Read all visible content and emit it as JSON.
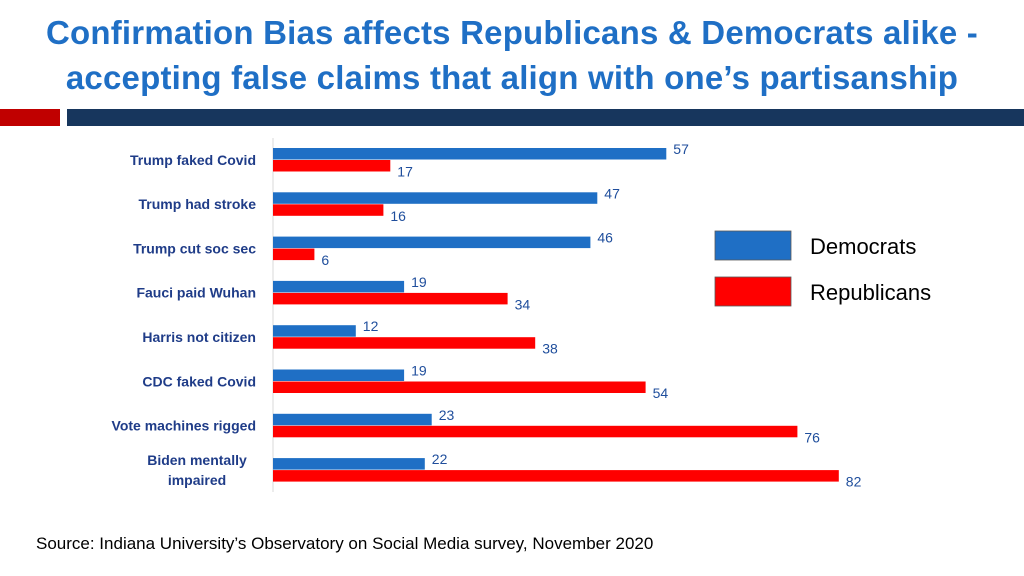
{
  "title": {
    "line1": "Confirmation Bias affects Republicans & Democrats alike -",
    "line2": "accepting false claims that align with one’s partisanship"
  },
  "colors": {
    "title": "#1f6fc5",
    "democrats": "#1f6fc5",
    "republicans": "#ff0000",
    "rule_red": "#c00000",
    "rule_navy": "#17365d",
    "category_text": "#1f3c88",
    "value_text": "#1f4e9c"
  },
  "chart_data": {
    "type": "bar",
    "orientation": "horizontal",
    "categories": [
      "Trump faked Covid",
      "Trump had stroke",
      "Trump cut soc sec",
      "Fauci paid Wuhan",
      "Harris not citizen",
      "CDC faked Covid",
      "Vote machines rigged",
      "Biden mentally impaired"
    ],
    "series": [
      {
        "name": "Democrats",
        "values": [
          57,
          47,
          46,
          19,
          12,
          19,
          23,
          22
        ]
      },
      {
        "name": "Republicans",
        "values": [
          17,
          16,
          6,
          34,
          38,
          54,
          76,
          82
        ]
      }
    ],
    "xlim": [
      0,
      90
    ],
    "grid": false,
    "legend_position": "right",
    "data_labels": true
  },
  "source": "Source: Indiana University’s Observatory on Social Media survey, November 2020"
}
